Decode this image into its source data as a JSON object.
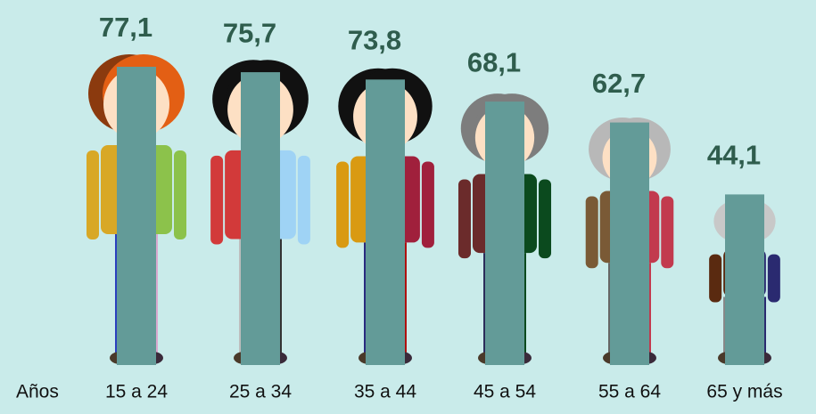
{
  "chart_data": {
    "type": "bar",
    "x_label": "Años",
    "categories": [
      "15 a 24",
      "25 a 34",
      "35 a 44",
      "45 a 54",
      "55 a 64",
      "65 y más"
    ],
    "values": [
      77.1,
      75.7,
      73.8,
      68.1,
      62.7,
      44.1
    ],
    "value_labels": [
      "77,1",
      "75,7",
      "73,8",
      "68,1",
      "62,7",
      "44,1"
    ],
    "color": "#639b98"
  }
}
